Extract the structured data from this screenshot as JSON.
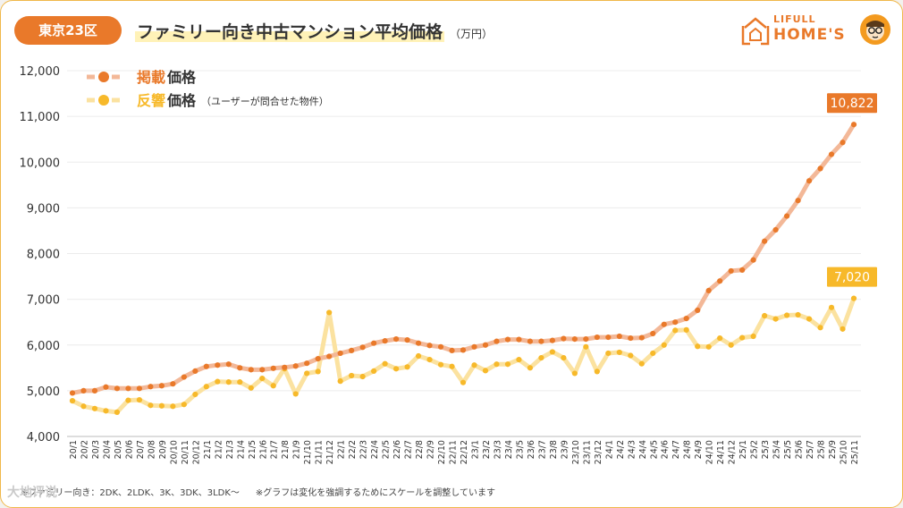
{
  "header": {
    "region_badge": "東京23区",
    "title": "ファミリー向き中古マンション平均価格",
    "title_unit": "（万円）"
  },
  "logo": {
    "line1": "LIFULL",
    "line2": "HOME'S"
  },
  "footnote": {
    "left": "※ファミリー向き：2DK、2LDK、3K、3DK、3LDK〜",
    "right": "※グラフは変化を強調するためにスケールを調整しています"
  },
  "watermark": "大地评说",
  "colors": {
    "listing": "#e9792a",
    "listing_light": "#f3b898",
    "inquiry": "#f7b92a",
    "inquiry_light": "#fbe2a0",
    "badge": "#e9792a"
  },
  "chart_data": {
    "type": "line",
    "ylim": [
      4000,
      12000
    ],
    "yticks": [
      4000,
      5000,
      6000,
      7000,
      8000,
      9000,
      10000,
      11000,
      12000
    ],
    "yticklabels": [
      "4,000",
      "5,000",
      "6,000",
      "7,000",
      "8,000",
      "9,000",
      "10,000",
      "11,000",
      "12,000"
    ],
    "grid": true,
    "legend_placement": "top-left",
    "categories": [
      "20/1",
      "20/2",
      "20/3",
      "20/4",
      "20/5",
      "20/6",
      "20/7",
      "20/8",
      "20/9",
      "20/10",
      "20/11",
      "20/12",
      "21/1",
      "21/2",
      "21/3",
      "21/4",
      "21/5",
      "21/6",
      "21/7",
      "21/8",
      "21/9",
      "21/10",
      "21/11",
      "21/12",
      "22/1",
      "22/2",
      "22/3",
      "22/4",
      "22/5",
      "22/6",
      "22/7",
      "22/8",
      "22/9",
      "22/10",
      "22/11",
      "22/12",
      "23/1",
      "23/2",
      "23/3",
      "23/4",
      "23/5",
      "23/6",
      "23/7",
      "23/8",
      "23/9",
      "23/10",
      "23/11",
      "23/12",
      "24/1",
      "24/2",
      "24/3",
      "24/4",
      "24/5",
      "24/6",
      "24/7",
      "24/8",
      "24/9",
      "24/10",
      "24/11",
      "24/12",
      "25/1",
      "25/2",
      "25/3",
      "25/4",
      "25/5",
      "25/6",
      "25/7",
      "25/8",
      "25/9",
      "25/10",
      "25/11"
    ],
    "series": [
      {
        "name": "掲載価格",
        "name_em": "掲載",
        "name_rest": "価格",
        "name_note": "",
        "end_label": "10,822",
        "values": [
          4950,
          5000,
          5000,
          5080,
          5050,
          5050,
          5050,
          5090,
          5110,
          5150,
          5300,
          5430,
          5530,
          5560,
          5580,
          5500,
          5460,
          5460,
          5490,
          5510,
          5540,
          5600,
          5700,
          5750,
          5820,
          5880,
          5950,
          6040,
          6090,
          6130,
          6110,
          6040,
          5990,
          5960,
          5880,
          5890,
          5960,
          6000,
          6080,
          6120,
          6120,
          6080,
          6080,
          6100,
          6140,
          6130,
          6130,
          6170,
          6170,
          6190,
          6150,
          6160,
          6250,
          6450,
          6500,
          6580,
          6760,
          7190,
          7400,
          7620,
          7640,
          7860,
          8270,
          8520,
          8820,
          9160,
          9590,
          9860,
          10170,
          10430,
          10822
        ]
      },
      {
        "name": "反響価格",
        "name_em": "反響",
        "name_rest": "価格",
        "name_note": "（ユーザーが問合せた物件）",
        "end_label": "7,020",
        "values": [
          4780,
          4660,
          4610,
          4560,
          4530,
          4790,
          4800,
          4680,
          4670,
          4660,
          4700,
          4920,
          5090,
          5200,
          5190,
          5190,
          5060,
          5270,
          5110,
          5480,
          4930,
          5380,
          5420,
          6710,
          5210,
          5330,
          5310,
          5430,
          5590,
          5480,
          5520,
          5760,
          5680,
          5570,
          5530,
          5180,
          5560,
          5440,
          5580,
          5580,
          5680,
          5500,
          5720,
          5850,
          5720,
          5380,
          5960,
          5420,
          5820,
          5840,
          5770,
          5590,
          5820,
          6000,
          6320,
          6330,
          5970,
          5960,
          6150,
          6000,
          6160,
          6190,
          6640,
          6570,
          6650,
          6660,
          6570,
          6380,
          6820,
          6350,
          7020
        ]
      }
    ]
  }
}
